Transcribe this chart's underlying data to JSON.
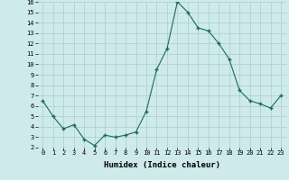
{
  "x": [
    0,
    1,
    2,
    3,
    4,
    5,
    6,
    7,
    8,
    9,
    10,
    11,
    12,
    13,
    14,
    15,
    16,
    17,
    18,
    19,
    20,
    21,
    22,
    23
  ],
  "y": [
    6.5,
    5.0,
    3.8,
    4.2,
    2.8,
    2.2,
    3.2,
    3.0,
    3.2,
    3.5,
    5.5,
    9.5,
    11.5,
    16.0,
    15.0,
    13.5,
    13.2,
    12.0,
    10.5,
    7.5,
    6.5,
    6.2,
    5.8,
    7.0
  ],
  "xlabel": "Humidex (Indice chaleur)",
  "bg_color": "#ceeaea",
  "grid_color": "#aacece",
  "line_color": "#1a6b5a",
  "marker_color": "#1a6b5a",
  "xlim": [
    -0.5,
    23.5
  ],
  "ylim": [
    2,
    16
  ],
  "yticks": [
    2,
    3,
    4,
    5,
    6,
    7,
    8,
    9,
    10,
    11,
    12,
    13,
    14,
    15,
    16
  ],
  "xticks": [
    0,
    1,
    2,
    3,
    4,
    5,
    6,
    7,
    8,
    9,
    10,
    11,
    12,
    13,
    14,
    15,
    16,
    17,
    18,
    19,
    20,
    21,
    22,
    23
  ],
  "tick_fontsize": 5.0,
  "xlabel_fontsize": 6.5
}
